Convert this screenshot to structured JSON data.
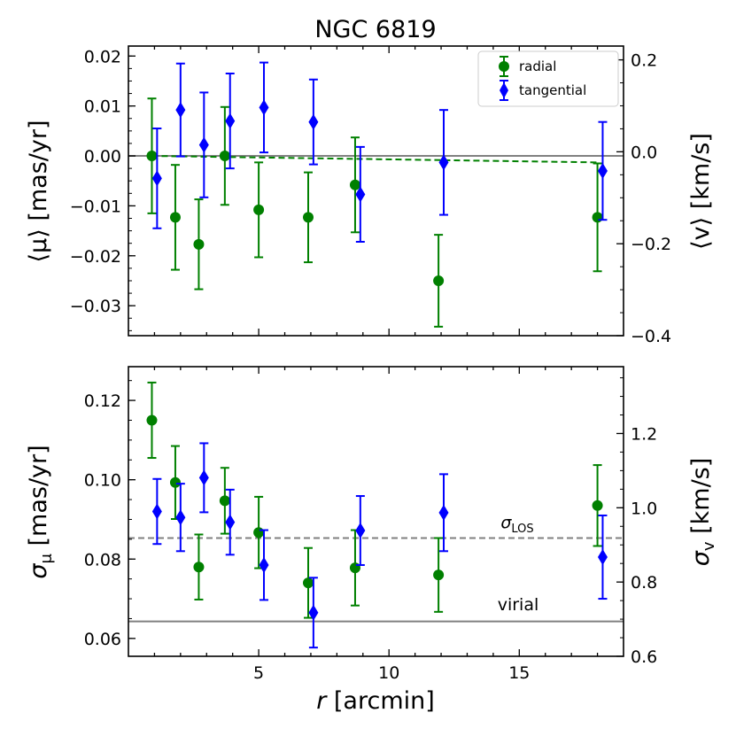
{
  "title": "NGC 6819",
  "chart_data": [
    {
      "type": "scatter",
      "panel": "top",
      "xlim": [
        0,
        19
      ],
      "ylim": [
        -0.036,
        0.022
      ],
      "ylabel": "⟨μ⟩ [mas/yr]",
      "y2label": "⟨v⟩ [km/s]",
      "y2lim": [
        -0.4,
        0.23
      ],
      "xticks": [
        5,
        10,
        15
      ],
      "yticks": [
        0.02,
        0.01,
        0.0,
        -0.01,
        -0.02,
        -0.03
      ],
      "yticklabels": [
        "0.02",
        "0.01",
        "0.00",
        "−0.01",
        "−0.02",
        "−0.03"
      ],
      "y2ticks": [
        0.2,
        0.0,
        -0.2,
        -0.4
      ],
      "y2ticklabels": [
        "0.2",
        "0.0",
        "−0.2",
        "−0.4"
      ],
      "legend": {
        "placement": "top-right",
        "entries": [
          "radial",
          "tangential"
        ]
      },
      "series": [
        {
          "name": "radial",
          "color": "#008000",
          "marker": "circle",
          "x": [
            0.9,
            1.8,
            2.7,
            3.7,
            5.0,
            6.9,
            8.7,
            11.9,
            18.0
          ],
          "y": [
            0.0,
            -0.0123,
            -0.0177,
            0.0,
            -0.0108,
            -0.0123,
            -0.0058,
            -0.025,
            -0.0123
          ],
          "err": [
            0.0115,
            0.0105,
            0.009,
            0.0098,
            0.0095,
            0.009,
            0.0095,
            0.0092,
            0.0108
          ]
        },
        {
          "name": "tangential",
          "color": "#0000ff",
          "marker": "diamond",
          "x": [
            1.1,
            2.0,
            2.9,
            3.9,
            5.2,
            7.1,
            8.9,
            12.1,
            18.2
          ],
          "y": [
            -0.0045,
            0.0092,
            0.0022,
            0.007,
            0.0097,
            0.0068,
            -0.0077,
            -0.0013,
            -0.003
          ],
          "err": [
            0.01,
            0.0093,
            0.0105,
            0.0095,
            0.009,
            0.0085,
            0.0095,
            0.0105,
            0.0098
          ]
        }
      ],
      "reference_lines": [
        {
          "kind": "solid",
          "color": "#808080",
          "x": [
            0,
            19
          ],
          "y": [
            0.0,
            0.0
          ]
        },
        {
          "kind": "dashed",
          "color": "#008000",
          "x": [
            0.9,
            18.0
          ],
          "y": [
            0.0,
            -0.0013
          ]
        }
      ]
    },
    {
      "type": "scatter",
      "panel": "bottom",
      "xlabel": "r [arcmin]",
      "xlim": [
        0,
        19
      ],
      "ylim": [
        0.0555,
        0.1285
      ],
      "ylabel": "σμ [mas/yr]",
      "y2label": "σv [km/s]",
      "y2lim": [
        0.6,
        1.38
      ],
      "xticks": [
        5,
        10,
        15
      ],
      "yticks": [
        0.06,
        0.08,
        0.1,
        0.12
      ],
      "yticklabels": [
        "0.06",
        "0.08",
        "0.10",
        "0.12"
      ],
      "y2ticks": [
        0.6,
        0.8,
        1.0,
        1.2
      ],
      "y2ticklabels": [
        "0.6",
        "0.8",
        "1.0",
        "1.2"
      ],
      "series": [
        {
          "name": "radial",
          "color": "#008000",
          "marker": "circle",
          "x": [
            0.9,
            1.8,
            2.7,
            3.7,
            5.0,
            6.9,
            8.7,
            11.9,
            18.0
          ],
          "y": [
            0.115,
            0.0993,
            0.078,
            0.0947,
            0.0867,
            0.074,
            0.0778,
            0.076,
            0.0935
          ],
          "err": [
            0.0095,
            0.0092,
            0.0082,
            0.0083,
            0.009,
            0.0088,
            0.0095,
            0.0093,
            0.0102
          ]
        },
        {
          "name": "tangential",
          "color": "#0000ff",
          "marker": "diamond",
          "x": [
            1.1,
            2.0,
            2.9,
            3.9,
            5.2,
            7.1,
            8.9,
            12.1,
            18.2
          ],
          "y": [
            0.092,
            0.0905,
            0.1005,
            0.0893,
            0.0785,
            0.0665,
            0.0872,
            0.0917,
            0.0805
          ],
          "err": [
            0.0082,
            0.0085,
            0.0087,
            0.0082,
            0.0088,
            0.0088,
            0.0087,
            0.0097,
            0.0105
          ]
        }
      ],
      "reference_lines": [
        {
          "kind": "dashed",
          "color": "#808080",
          "y": 0.0853,
          "label": "σLOS"
        },
        {
          "kind": "solid",
          "color": "#808080",
          "y": 0.0643,
          "label": "virial"
        }
      ]
    }
  ],
  "labels": {
    "top_ylabel": "⟨μ⟩ [mas/yr]",
    "top_y2label": "⟨v⟩ [km/s]",
    "bottom_ylabel_main": "σ",
    "bottom_ylabel_sub": "μ",
    "bottom_ylabel_units": " [mas/yr]",
    "bottom_y2label_main": "σ",
    "bottom_y2label_sub": "v",
    "bottom_y2label_units": " [km/s]",
    "xlabel_var": "r",
    "xlabel_units": " [arcmin]",
    "sigma_los_main": "σ",
    "sigma_los_sub": "LOS",
    "virial": "virial"
  }
}
